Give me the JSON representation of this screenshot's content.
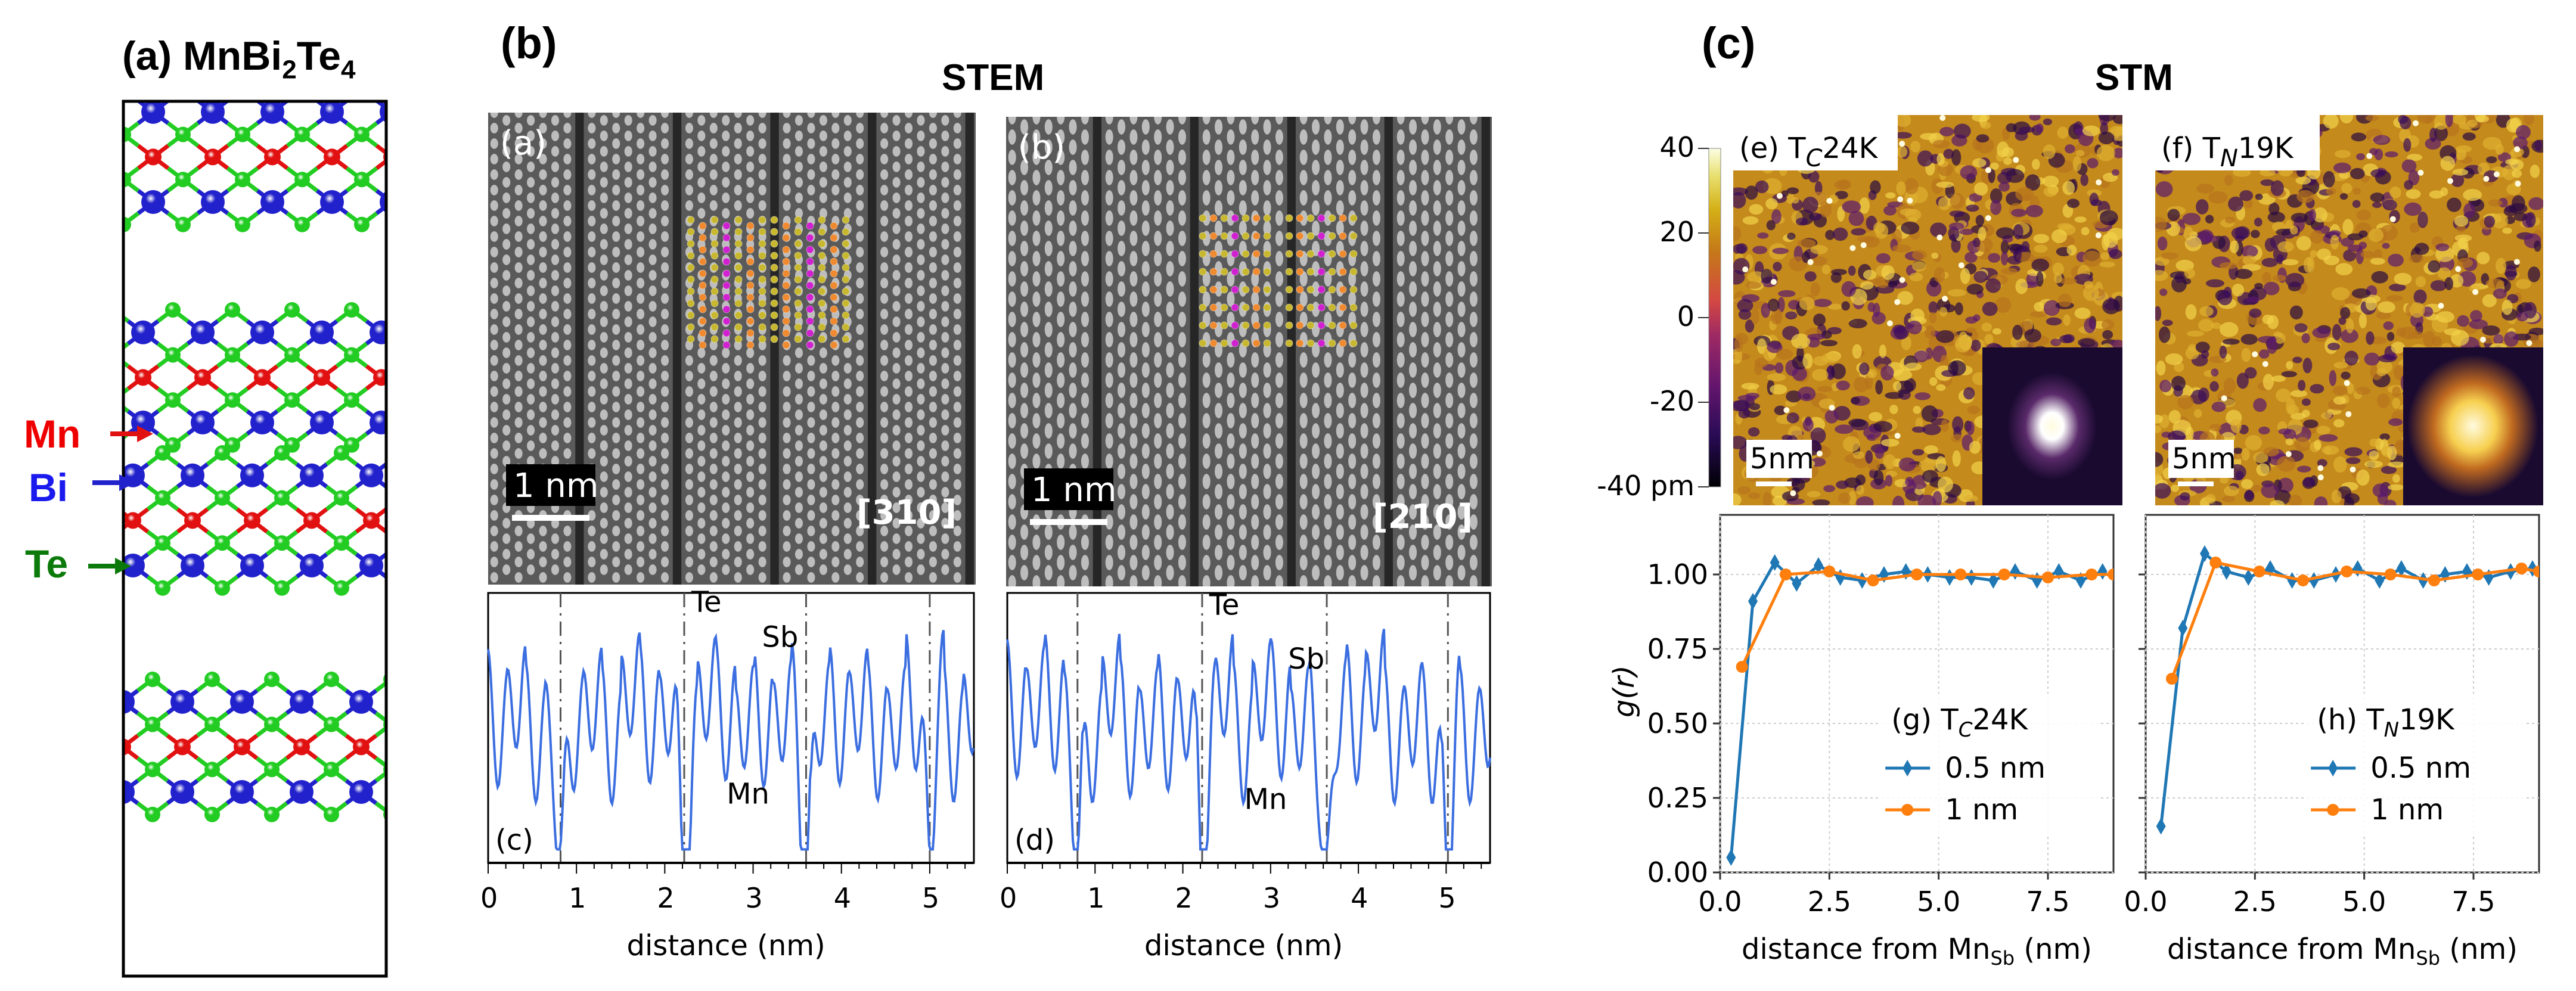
{
  "figure": {
    "panel_a": {
      "label": "(a)",
      "title_main": "MnBi",
      "title_sub1": "2",
      "title_mid": "Te",
      "title_sub2": "4",
      "element_labels": [
        {
          "name": "Mn",
          "color": "#ee0000"
        },
        {
          "name": "Bi",
          "color": "#1a1aee"
        },
        {
          "name": "Te",
          "color": "#0b7a0b"
        }
      ],
      "atom_colors": {
        "Mn": "#e11111",
        "Bi": "#2222cc",
        "Te": "#22cc22"
      },
      "layer_sequence": [
        "Te",
        "Bi",
        "Te",
        "Mn",
        "Te",
        "Bi",
        "Te"
      ]
    },
    "panel_b": {
      "label": "(b)",
      "title": "STEM",
      "images": [
        {
          "tag": "(a)",
          "scale_bar": "1 nm",
          "zone_axis": "[310]"
        },
        {
          "tag": "(b)",
          "scale_bar": "1 nm",
          "zone_axis": "[210]"
        }
      ],
      "overlay_colors": {
        "Te": "#c8b830",
        "Sb": "#ef8a30",
        "Mn": "#d020d0"
      }
    },
    "panel_c": {
      "label": "(c)",
      "title": "STM",
      "colorbar": {
        "ticks": [
          "40",
          "20",
          "0",
          "-20",
          "-40 pm"
        ],
        "min": -40,
        "max": 40,
        "unit": "pm"
      },
      "images": [
        {
          "tag": "(e)",
          "label_T": "T",
          "label_sub": "C",
          "label_val": "24K",
          "scale_bar": "5nm"
        },
        {
          "tag": "(f)",
          "label_T": "T",
          "label_sub": "N",
          "label_val": "19K",
          "scale_bar": "5nm"
        }
      ]
    }
  },
  "chart_data": [
    {
      "id": "profile-c",
      "type": "line",
      "panel_tag": "(c)",
      "xlabel": "distance (nm)",
      "ylabel": "",
      "xlim": [
        0,
        5.5
      ],
      "xticks": [
        0,
        1,
        2,
        3,
        4,
        5
      ],
      "series_color": "#3b6ee0",
      "vlines": [
        0.82,
        2.22,
        3.6,
        5.0
      ],
      "annotations": [
        {
          "text": "Te",
          "x": 2.3,
          "y": 0.93,
          "color": "#9aa838"
        },
        {
          "text": "Sb",
          "x": 3.1,
          "y": 0.8,
          "color": "#ef8a30"
        },
        {
          "text": "Mn",
          "x": 2.7,
          "y": 0.22,
          "color": "#8a2ed0"
        }
      ],
      "peaks_description": "periodic intensity profile; deep minima (Mn-vdW gaps) at dashed lines"
    },
    {
      "id": "profile-d",
      "type": "line",
      "panel_tag": "(d)",
      "xlabel": "distance (nm)",
      "ylabel": "",
      "xlim": [
        0,
        5.5
      ],
      "xticks": [
        0,
        1,
        2,
        3,
        4,
        5
      ],
      "series_color": "#3b6ee0",
      "vlines": [
        0.8,
        2.22,
        3.64,
        5.02
      ],
      "annotations": [
        {
          "text": "Te",
          "x": 2.3,
          "y": 0.92,
          "color": "#9aa838"
        },
        {
          "text": "Sb",
          "x": 3.2,
          "y": 0.72,
          "color": "#ef8a30"
        },
        {
          "text": "Mn",
          "x": 2.7,
          "y": 0.2,
          "color": "#8a2ed0"
        }
      ]
    },
    {
      "id": "gr-g",
      "type": "line",
      "title": "(g) T_C 24K",
      "legend_tag": "(g)",
      "legend_T": "T",
      "legend_sub": "C",
      "legend_val": "24K",
      "xlabel_pre": "distance from Mn",
      "xlabel_sub": "Sb",
      "xlabel_post": " (nm)",
      "ylabel": "g(r)",
      "xlim": [
        0,
        9.0
      ],
      "ylim": [
        0,
        1.2
      ],
      "xticks": [
        "0.0",
        "2.5",
        "5.0",
        "7.5"
      ],
      "yticks": [
        "0.00",
        "0.25",
        "0.50",
        "0.75",
        "1.00"
      ],
      "grid": true,
      "legend": "center-right",
      "series": [
        {
          "name": "0.5 nm",
          "color": "#1f77b4",
          "marker": "diamond",
          "x": [
            0.25,
            0.75,
            1.25,
            1.75,
            2.25,
            2.75,
            3.25,
            3.75,
            4.25,
            4.75,
            5.25,
            5.75,
            6.25,
            6.75,
            7.25,
            7.75,
            8.25,
            8.75
          ],
          "y": [
            0.05,
            0.91,
            1.04,
            0.97,
            1.03,
            0.99,
            0.98,
            1.0,
            1.01,
            1.0,
            0.99,
            0.99,
            0.98,
            1.01,
            0.98,
            1.01,
            0.98,
            1.01
          ]
        },
        {
          "name": "1 nm",
          "color": "#ff7f0e",
          "marker": "circle",
          "x": [
            0.5,
            1.5,
            2.5,
            3.5,
            4.5,
            5.5,
            6.5,
            7.5,
            8.5,
            9.0
          ],
          "y": [
            0.69,
            1.0,
            1.01,
            0.98,
            1.0,
            1.0,
            1.0,
            0.99,
            1.0,
            1.0
          ]
        }
      ]
    },
    {
      "id": "gr-h",
      "type": "line",
      "title": "(h) T_N 19K",
      "legend_tag": "(h)",
      "legend_T": "T",
      "legend_sub": "N",
      "legend_val": "19K",
      "xlabel_pre": "distance from Mn",
      "xlabel_sub": "Sb",
      "xlabel_post": " (nm)",
      "ylabel": "",
      "xlim": [
        0,
        9.0
      ],
      "ylim": [
        0,
        1.2
      ],
      "xticks": [
        "0.0",
        "2.5",
        "5.0",
        "7.5"
      ],
      "yticks": [],
      "grid": true,
      "legend": "center-right",
      "series": [
        {
          "name": "0.5 nm",
          "color": "#1f77b4",
          "marker": "diamond",
          "x": [
            0.35,
            0.85,
            1.35,
            1.85,
            2.35,
            2.85,
            3.35,
            3.85,
            4.35,
            4.85,
            5.35,
            5.85,
            6.35,
            6.85,
            7.35,
            7.85,
            8.35,
            8.85
          ],
          "y": [
            0.155,
            0.82,
            1.07,
            1.01,
            0.99,
            1.02,
            0.98,
            0.98,
            1.0,
            1.02,
            0.98,
            1.02,
            0.98,
            1.0,
            1.01,
            0.99,
            1.01,
            1.02
          ]
        },
        {
          "name": "1 nm",
          "color": "#ff7f0e",
          "marker": "circle",
          "x": [
            0.6,
            1.6,
            2.6,
            3.6,
            4.6,
            5.6,
            6.6,
            7.6,
            8.6,
            9.0
          ],
          "y": [
            0.65,
            1.04,
            1.01,
            0.98,
            1.01,
            1.0,
            0.98,
            1.0,
            1.02,
            1.01
          ]
        }
      ]
    }
  ]
}
